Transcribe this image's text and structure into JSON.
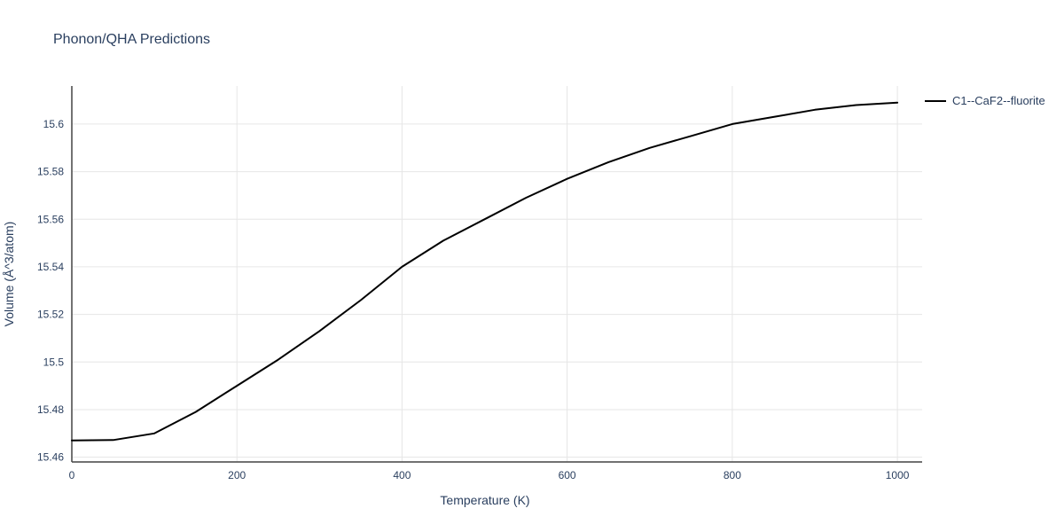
{
  "page": {
    "title": "Phonon/QHA Predictions"
  },
  "colors": {
    "background": "#ffffff",
    "title_text": "#2a3f5f",
    "tick_text": "#2a3f5f",
    "axis_line": "#444444",
    "grid_line": "#e6e6e6",
    "series_line": "#000000"
  },
  "legend": {
    "label": "C1--CaF2--fluorite"
  },
  "chart_data": {
    "type": "line",
    "title": "Phonon/QHA Predictions",
    "xlabel": "Temperature (K)",
    "ylabel": "Volume (Å^3/atom)",
    "xlim": [
      0,
      1030
    ],
    "ylim": [
      15.458,
      15.616
    ],
    "x_ticks": [
      0,
      200,
      400,
      600,
      800,
      1000
    ],
    "x_tick_labels": [
      "0",
      "200",
      "400",
      "600",
      "800",
      "1000"
    ],
    "y_ticks": [
      15.46,
      15.48,
      15.5,
      15.52,
      15.54,
      15.56,
      15.58,
      15.6
    ],
    "y_tick_labels": [
      "15.46",
      "15.48",
      "15.5",
      "15.52",
      "15.54",
      "15.56",
      "15.58",
      "15.6"
    ],
    "grid": true,
    "legend_position": "top-right",
    "series": [
      {
        "name": "C1--CaF2--fluorite",
        "x": [
          0,
          50,
          100,
          150,
          200,
          250,
          300,
          350,
          400,
          450,
          500,
          550,
          600,
          650,
          700,
          750,
          800,
          850,
          900,
          950,
          1000
        ],
        "y": [
          15.467,
          15.4672,
          15.47,
          15.479,
          15.49,
          15.501,
          15.513,
          15.526,
          15.54,
          15.551,
          15.56,
          15.569,
          15.577,
          15.584,
          15.59,
          15.595,
          15.6,
          15.603,
          15.606,
          15.608,
          15.609
        ]
      }
    ]
  }
}
